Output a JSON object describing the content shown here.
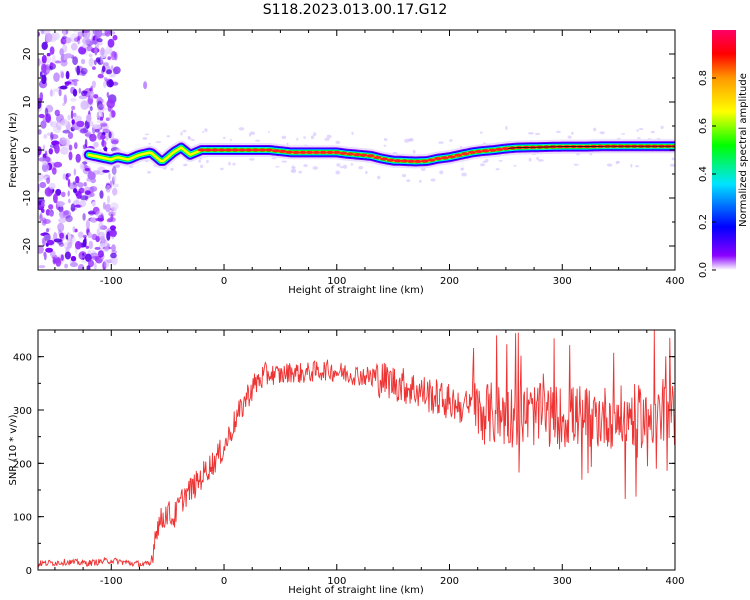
{
  "title": "S118.2023.013.00.17.G12",
  "chart_data": [
    {
      "type": "heatmap",
      "panel": "spectrogram",
      "xlabel": "Height of straight line (km)",
      "ylabel": "Frequency (Hz)",
      "xlim": [
        -165,
        400
      ],
      "ylim": [
        -25,
        25
      ],
      "xticks": [
        -100,
        0,
        100,
        200,
        300,
        400
      ],
      "yticks": [
        -20,
        -10,
        0,
        10,
        20
      ],
      "colorbar": {
        "label": "Normalized spectral amplitude",
        "range": [
          0,
          1
        ],
        "ticks": [
          "0.0",
          "0.2",
          "0.4",
          "0.6",
          "0.8"
        ],
        "colors": [
          "#ffffff",
          "#7a00ff",
          "#0000ff",
          "#00e5ff",
          "#00ff00",
          "#ffff00",
          "#ff9900",
          "#ff0000",
          "#ff0066"
        ]
      },
      "noise_region_x": [
        -165,
        -95
      ],
      "frequency_trace": {
        "x": [
          -120,
          -110,
          -100,
          -95,
          -85,
          -75,
          -65,
          -55,
          -45,
          -38,
          -30,
          -20,
          0,
          20,
          40,
          60,
          80,
          100,
          110,
          120,
          130,
          140,
          150,
          160,
          170,
          180,
          190,
          200,
          210,
          220,
          230,
          240,
          250,
          260,
          280,
          300,
          320,
          340,
          360,
          380,
          400
        ],
        "y": [
          -1,
          -1.5,
          -2,
          -1.5,
          -2,
          -1,
          -0.5,
          -2.5,
          -0.5,
          0.5,
          -1,
          0,
          0,
          0,
          0,
          -0.5,
          -0.5,
          -0.5,
          -0.8,
          -1,
          -1.2,
          -1.8,
          -2.2,
          -2.3,
          -2.4,
          -2.3,
          -1.8,
          -1.5,
          -1,
          -0.5,
          -0.2,
          0,
          0.3,
          0.5,
          0.6,
          0.7,
          0.7,
          0.8,
          0.8,
          0.8,
          0.8
        ]
      }
    },
    {
      "type": "line",
      "panel": "snr",
      "xlabel": "Height of straight line (km)",
      "ylabel": "SNR (10 * v/v)",
      "xlim": [
        -165,
        400
      ],
      "ylim": [
        0,
        450
      ],
      "xticks": [
        -100,
        0,
        100,
        200,
        300,
        400
      ],
      "yticks": [
        0,
        100,
        200,
        300,
        400
      ],
      "color": "#ee3333",
      "x": [
        -165,
        -140,
        -120,
        -100,
        -80,
        -65,
        -60,
        -50,
        -45,
        -40,
        -35,
        -30,
        -25,
        -20,
        -15,
        -10,
        -5,
        0,
        5,
        10,
        15,
        20,
        25,
        30,
        35,
        40,
        50,
        60,
        70,
        80,
        90,
        100,
        110,
        120,
        130,
        140,
        150,
        160,
        170,
        180,
        190,
        200,
        210,
        220,
        230,
        240,
        250,
        260,
        270,
        280,
        290,
        300,
        310,
        320,
        330,
        340,
        350,
        360,
        370,
        380,
        390,
        400
      ],
      "y": [
        12,
        15,
        13,
        18,
        12,
        10,
        80,
        110,
        95,
        120,
        140,
        150,
        160,
        175,
        190,
        200,
        215,
        230,
        255,
        280,
        300,
        325,
        340,
        355,
        362,
        368,
        365,
        372,
        368,
        372,
        375,
        372,
        368,
        365,
        362,
        358,
        352,
        345,
        338,
        330,
        322,
        315,
        308,
        300,
        295,
        292,
        290,
        288,
        292,
        290,
        288,
        285,
        288,
        290,
        285,
        288,
        285,
        290,
        288,
        292,
        285,
        290
      ]
    }
  ]
}
